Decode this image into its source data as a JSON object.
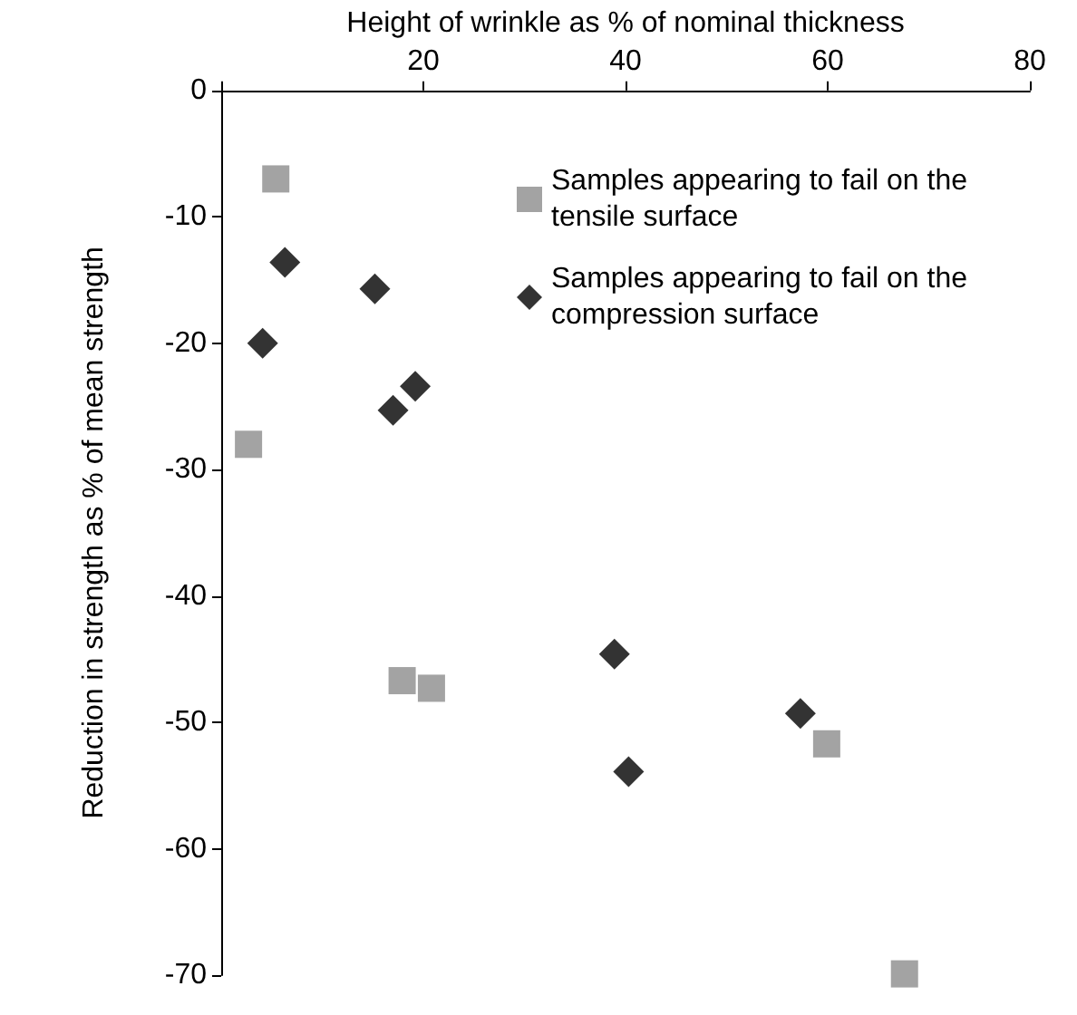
{
  "chart_data": {
    "type": "scatter",
    "xlabel": "Height of wrinkle as % of nominal thickness",
    "ylabel": "Reduction in strength as % of mean strength",
    "xlim": [
      0,
      80
    ],
    "xticks": [
      {
        "value": 0,
        "label": null
      },
      20,
      40,
      60,
      80
    ],
    "ylim": [
      -70,
      0
    ],
    "yticks": [
      -70,
      -60,
      -50,
      -40,
      -30,
      -20,
      -10,
      0
    ],
    "grid": false,
    "legend": "top right",
    "series": [
      {
        "name": "Samples appearing to fail on the tensile surface",
        "color": "#8c8c8c",
        "marker": "square",
        "x": [
          2.7,
          5.4,
          17.9,
          20.8,
          59.9,
          67.6
        ],
        "values": [
          -28,
          -7,
          -46.7,
          -47.3,
          -51.7,
          -69.9
        ]
      },
      {
        "name": "Samples appearing to fail on the compression surface",
        "color": "#000000",
        "marker": "diamond",
        "x": [
          6.3,
          4.1,
          15.2,
          17.0,
          19.2,
          38.9,
          40.3,
          57.3
        ],
        "values": [
          -13.6,
          -20,
          -15.7,
          -25.3,
          -23.4,
          -44.6,
          -53.9,
          -49.3
        ]
      }
    ]
  }
}
